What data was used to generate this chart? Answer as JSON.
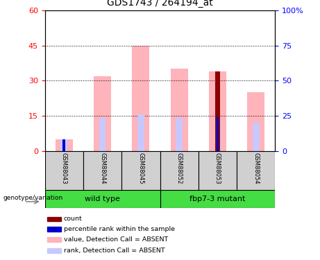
{
  "title": "GDS1743 / 264194_at",
  "samples": [
    "GSM88043",
    "GSM88044",
    "GSM88045",
    "GSM88052",
    "GSM88053",
    "GSM88054"
  ],
  "value_absent": [
    5.0,
    32.0,
    45.0,
    35.0,
    34.0,
    25.0
  ],
  "rank_absent": [
    5.0,
    14.0,
    15.5,
    14.0,
    14.5,
    12.0
  ],
  "count_value": [
    0,
    0,
    0,
    0,
    34.0,
    0
  ],
  "percentile_rank_left": [
    5.0,
    0,
    0,
    0,
    14.5,
    0
  ],
  "ylim_left": [
    0,
    60
  ],
  "ylim_right": [
    0,
    100
  ],
  "yticks_left": [
    0,
    15,
    30,
    45,
    60
  ],
  "yticks_right": [
    0,
    25,
    50,
    75,
    100
  ],
  "color_value_absent": "#ffb3ba",
  "color_rank_absent": "#c8c8ff",
  "color_count": "#8b0000",
  "color_percentile": "#0000cd",
  "wild_type_label": "wild type",
  "mutant_label": "fbp7-3 mutant",
  "group_color": "#44dd44",
  "genotype_label": "genotype/variation",
  "legend_items": [
    {
      "label": "count",
      "color": "#8b0000"
    },
    {
      "label": "percentile rank within the sample",
      "color": "#0000cd"
    },
    {
      "label": "value, Detection Call = ABSENT",
      "color": "#ffb3ba"
    },
    {
      "label": "rank, Detection Call = ABSENT",
      "color": "#c8c8ff"
    }
  ]
}
